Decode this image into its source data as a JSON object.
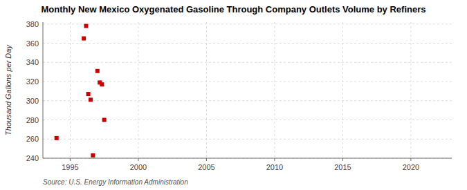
{
  "chart_data": {
    "type": "scatter",
    "title": "Monthly New Mexico Oxygenated Gasoline Through Company Outlets Volume by Refiners",
    "y_label": "Thousand Gallons per Day",
    "source": "Source: U.S. Energy Information Administration",
    "x": [
      1994.0,
      1996.0,
      1996.17,
      1996.33,
      1996.5,
      1996.67,
      1997.0,
      1997.17,
      1997.33,
      1997.5
    ],
    "values": [
      261,
      365,
      378,
      307,
      301,
      243,
      331,
      319,
      317,
      280
    ],
    "color": "#cc0000",
    "marker": "square",
    "xlim": [
      1993.0,
      2023.0
    ],
    "ylim": [
      240,
      382
    ],
    "xticks": [
      1995,
      2000,
      2005,
      2010,
      2015,
      2020
    ],
    "yticks": [
      240,
      260,
      280,
      300,
      320,
      340,
      360,
      380
    ],
    "grid": true
  }
}
